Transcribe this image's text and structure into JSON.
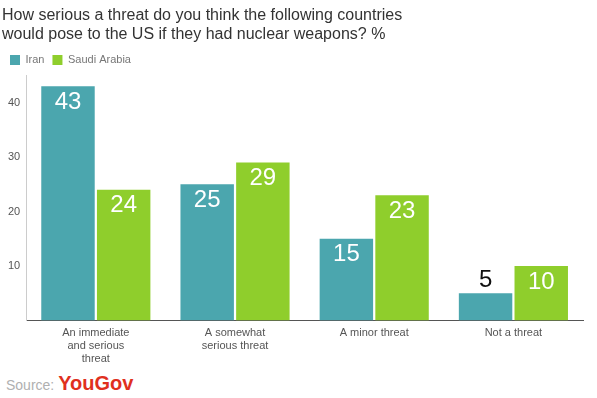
{
  "chart_data": {
    "type": "bar",
    "title": "How serious a threat do you think the following countries would pose to the US if they had nuclear weapons? %",
    "categories": [
      "An immediate and serious threat",
      "A somewhat serious threat",
      "A minor threat",
      "Not a threat"
    ],
    "series": [
      {
        "name": "Iran",
        "color": "#4ba6ae",
        "values": [
          43,
          25,
          15,
          5
        ]
      },
      {
        "name": "Saudi Arabia",
        "color": "#8fce2c",
        "values": [
          24,
          29,
          23,
          10
        ]
      }
    ],
    "ylim": [
      0,
      45
    ],
    "yticks": [
      10,
      20,
      30,
      40
    ],
    "grid": false,
    "legend": "top-left",
    "data_labels": true,
    "annotations": [
      "Source:",
      "YouGov"
    ]
  }
}
